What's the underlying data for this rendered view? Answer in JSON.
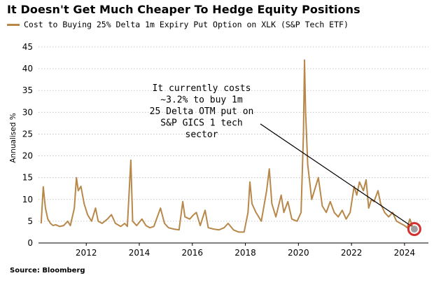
{
  "title": "It Doesn't Get Much Cheaper To Hedge Equity Positions",
  "source": "Source: Bloomberg",
  "colors": {
    "series": "#b8884a",
    "grid": "#b9b9b9",
    "marker": "#d32f2f",
    "arrow": "#000000"
  },
  "chart_data": {
    "type": "line",
    "title": "It Doesn't Get Much Cheaper To Hedge Equity Positions",
    "xlabel": "",
    "ylabel": "Annualised %",
    "xlim": [
      2010.2,
      2024.9
    ],
    "ylim": [
      0,
      45
    ],
    "yticks": [
      0,
      5,
      10,
      15,
      20,
      25,
      30,
      35,
      40,
      45
    ],
    "xticks": [
      2012,
      2014,
      2016,
      2018,
      2020,
      2022,
      2024
    ],
    "grid": {
      "horizontal": true,
      "vertical": false,
      "style": "dotted"
    },
    "legend": "top-left",
    "series": [
      {
        "name": "Cost to Buying 25% Delta 1m Expiry Put Option on XLK (S&P Tech ETF)",
        "points": [
          [
            2010.3,
            4.5
          ],
          [
            2010.38,
            12.9
          ],
          [
            2010.46,
            8.0
          ],
          [
            2010.55,
            5.5
          ],
          [
            2010.65,
            4.5
          ],
          [
            2010.75,
            4.0
          ],
          [
            2010.85,
            4.2
          ],
          [
            2011.0,
            3.8
          ],
          [
            2011.15,
            4.0
          ],
          [
            2011.3,
            5.0
          ],
          [
            2011.4,
            4.0
          ],
          [
            2011.55,
            8.0
          ],
          [
            2011.63,
            15.0
          ],
          [
            2011.7,
            12.0
          ],
          [
            2011.8,
            13.0
          ],
          [
            2011.92,
            9.0
          ],
          [
            2012.05,
            6.5
          ],
          [
            2012.2,
            5.0
          ],
          [
            2012.35,
            8.0
          ],
          [
            2012.45,
            5.0
          ],
          [
            2012.6,
            4.5
          ],
          [
            2012.8,
            5.5
          ],
          [
            2012.95,
            6.5
          ],
          [
            2013.1,
            4.5
          ],
          [
            2013.3,
            3.8
          ],
          [
            2013.45,
            4.5
          ],
          [
            2013.55,
            3.8
          ],
          [
            2013.68,
            19.0
          ],
          [
            2013.75,
            5.0
          ],
          [
            2013.9,
            4.0
          ],
          [
            2014.1,
            5.5
          ],
          [
            2014.25,
            4.0
          ],
          [
            2014.4,
            3.5
          ],
          [
            2014.55,
            3.8
          ],
          [
            2014.8,
            8.0
          ],
          [
            2014.95,
            4.5
          ],
          [
            2015.1,
            3.5
          ],
          [
            2015.3,
            3.2
          ],
          [
            2015.5,
            3.0
          ],
          [
            2015.64,
            9.5
          ],
          [
            2015.72,
            6.0
          ],
          [
            2015.9,
            5.5
          ],
          [
            2016.05,
            6.5
          ],
          [
            2016.15,
            7.0
          ],
          [
            2016.3,
            4.0
          ],
          [
            2016.48,
            7.5
          ],
          [
            2016.6,
            3.5
          ],
          [
            2016.8,
            3.2
          ],
          [
            2017.0,
            3.0
          ],
          [
            2017.2,
            3.5
          ],
          [
            2017.35,
            4.5
          ],
          [
            2017.55,
            3.0
          ],
          [
            2017.75,
            2.5
          ],
          [
            2017.95,
            2.5
          ],
          [
            2018.1,
            7.0
          ],
          [
            2018.17,
            14.0
          ],
          [
            2018.25,
            9.0
          ],
          [
            2018.4,
            7.0
          ],
          [
            2018.6,
            5.0
          ],
          [
            2018.8,
            12.0
          ],
          [
            2018.9,
            17.0
          ],
          [
            2019.0,
            9.0
          ],
          [
            2019.15,
            6.0
          ],
          [
            2019.35,
            11.0
          ],
          [
            2019.45,
            7.0
          ],
          [
            2019.6,
            9.5
          ],
          [
            2019.75,
            5.5
          ],
          [
            2019.95,
            5.0
          ],
          [
            2020.1,
            7.0
          ],
          [
            2020.19,
            25.0
          ],
          [
            2020.23,
            42.0
          ],
          [
            2020.27,
            30.0
          ],
          [
            2020.35,
            18.0
          ],
          [
            2020.5,
            10.0
          ],
          [
            2020.65,
            13.0
          ],
          [
            2020.75,
            15.0
          ],
          [
            2020.9,
            8.5
          ],
          [
            2021.05,
            7.0
          ],
          [
            2021.2,
            9.5
          ],
          [
            2021.35,
            7.0
          ],
          [
            2021.5,
            6.0
          ],
          [
            2021.65,
            7.5
          ],
          [
            2021.8,
            5.5
          ],
          [
            2021.95,
            7.0
          ],
          [
            2022.1,
            13.0
          ],
          [
            2022.2,
            11.0
          ],
          [
            2022.3,
            14.0
          ],
          [
            2022.45,
            12.0
          ],
          [
            2022.55,
            14.5
          ],
          [
            2022.65,
            8.0
          ],
          [
            2022.75,
            10.0
          ],
          [
            2022.85,
            9.5
          ],
          [
            2023.0,
            12.0
          ],
          [
            2023.1,
            9.0
          ],
          [
            2023.25,
            7.0
          ],
          [
            2023.4,
            6.0
          ],
          [
            2023.55,
            7.0
          ],
          [
            2023.7,
            5.0
          ],
          [
            2023.85,
            4.5
          ],
          [
            2024.0,
            4.0
          ],
          [
            2024.1,
            3.5
          ],
          [
            2024.2,
            5.5
          ],
          [
            2024.3,
            3.8
          ],
          [
            2024.37,
            3.2
          ]
        ]
      }
    ],
    "annotations": [
      {
        "lines": [
          "It currently costs",
          "~3.2% to buy 1m",
          "25 Delta OTM put on",
          "S&P GICS 1 tech",
          "sector"
        ],
        "target": [
          2024.37,
          3.2
        ]
      }
    ]
  }
}
